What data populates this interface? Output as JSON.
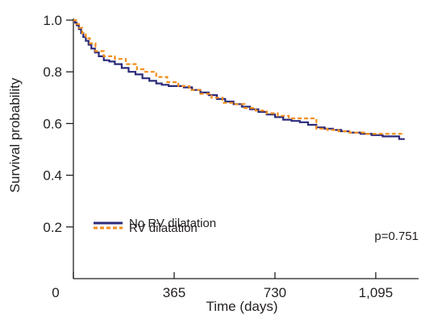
{
  "chart_data": {
    "type": "line",
    "subtype": "kaplan-meier step curve",
    "xlabel": "Time (days)",
    "ylabel": "Survival probability",
    "xlim": [
      0,
      1250
    ],
    "ylim": [
      0,
      1.0
    ],
    "x_ticks": [
      0,
      365,
      730,
      1095
    ],
    "x_tick_labels": [
      "0",
      "365",
      "730",
      "1,095"
    ],
    "y_ticks": [
      0.2,
      0.4,
      0.6,
      0.8,
      1.0
    ],
    "y_tick_labels": [
      "0.2",
      "0.4",
      "0.6",
      "0.8",
      "1.0"
    ],
    "grid": false,
    "legend_position": "bottom-left",
    "annotation": "p=0.751",
    "series": [
      {
        "name": "No RV dilatation",
        "color": "#2b2a7a",
        "line_style": "solid",
        "x": [
          0,
          6,
          12,
          20,
          28,
          36,
          45,
          55,
          65,
          78,
          92,
          110,
          130,
          150,
          175,
          200,
          225,
          250,
          275,
          300,
          320,
          345,
          370,
          400,
          430,
          460,
          490,
          520,
          550,
          580,
          610,
          640,
          670,
          700,
          730,
          760,
          790,
          820,
          850,
          880,
          910,
          940,
          970,
          1000,
          1040,
          1080,
          1120,
          1160,
          1180,
          1200
        ],
        "y": [
          1.0,
          0.99,
          0.98,
          0.965,
          0.95,
          0.935,
          0.92,
          0.905,
          0.89,
          0.875,
          0.86,
          0.845,
          0.84,
          0.83,
          0.815,
          0.8,
          0.79,
          0.775,
          0.765,
          0.755,
          0.75,
          0.745,
          0.745,
          0.74,
          0.73,
          0.72,
          0.71,
          0.695,
          0.685,
          0.675,
          0.665,
          0.655,
          0.645,
          0.635,
          0.625,
          0.615,
          0.61,
          0.605,
          0.595,
          0.585,
          0.58,
          0.575,
          0.57,
          0.565,
          0.56,
          0.555,
          0.55,
          0.55,
          0.54,
          0.54
        ]
      },
      {
        "name": "RV dilatation",
        "color": "#f28e1c",
        "line_style": "dashed",
        "x": [
          0,
          10,
          20,
          32,
          45,
          60,
          80,
          110,
          150,
          190,
          230,
          260,
          300,
          340,
          380,
          420,
          460,
          500,
          540,
          580,
          620,
          660,
          700,
          740,
          780,
          820,
          860,
          880,
          920,
          960,
          1000,
          1060,
          1120,
          1200
        ],
        "y": [
          1.0,
          0.985,
          0.97,
          0.95,
          0.93,
          0.91,
          0.88,
          0.86,
          0.85,
          0.83,
          0.81,
          0.8,
          0.78,
          0.76,
          0.745,
          0.73,
          0.715,
          0.7,
          0.68,
          0.675,
          0.66,
          0.65,
          0.64,
          0.63,
          0.62,
          0.62,
          0.62,
          0.58,
          0.575,
          0.57,
          0.565,
          0.56,
          0.56,
          0.56
        ]
      }
    ]
  }
}
